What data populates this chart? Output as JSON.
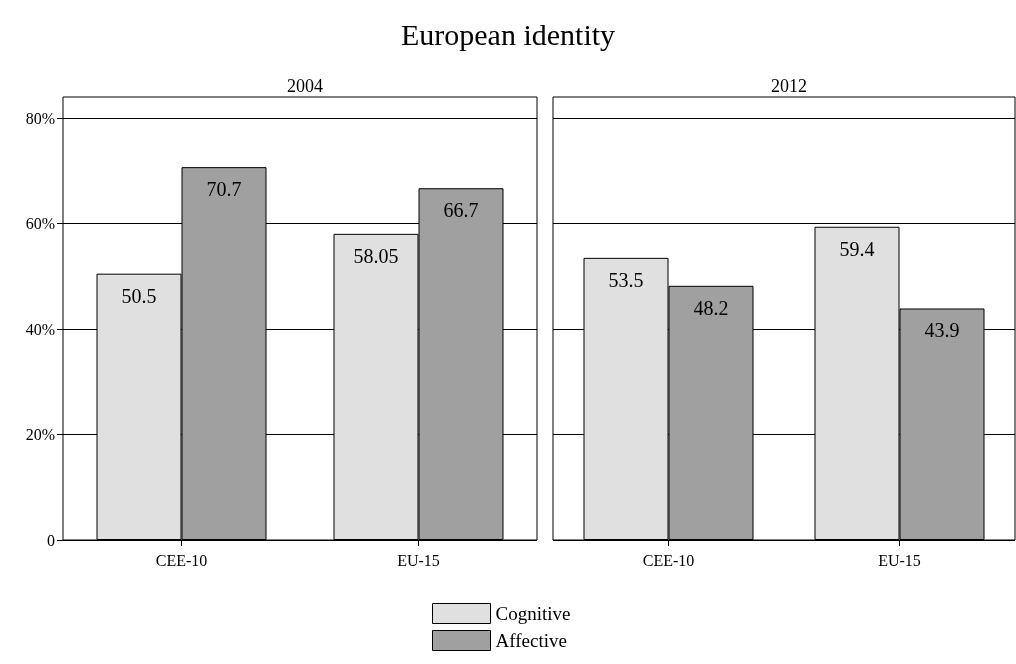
{
  "chart_data": [
    {
      "type": "bar",
      "title": "European identity",
      "subtitle": "2004",
      "categories": [
        "CEE-10",
        "EU-15"
      ],
      "series": [
        {
          "name": "Cognitive",
          "color": "#e0e0e0",
          "values": [
            50.5,
            58.05
          ]
        },
        {
          "name": "Affective",
          "color": "#a0a0a0",
          "values": [
            70.7,
            66.7
          ]
        }
      ],
      "ylim": [
        0,
        84
      ],
      "yticks": [
        {
          "value": 0,
          "label": "0"
        },
        {
          "value": 20,
          "label": "20%"
        },
        {
          "value": 40,
          "label": "40%"
        },
        {
          "value": 60,
          "label": "60%"
        },
        {
          "value": 80,
          "label": "80%"
        }
      ],
      "grid": "y",
      "data_labels": true,
      "legend": "bottom"
    },
    {
      "type": "bar",
      "subtitle": "2012",
      "categories": [
        "CEE-10",
        "EU-15"
      ],
      "series": [
        {
          "color": "#e0e0e0",
          "values": [
            53.5,
            59.4
          ]
        },
        {
          "color": "#a0a0a0",
          "values": [
            48.2,
            43.9
          ]
        }
      ],
      "ylim": [
        0,
        84
      ],
      "yticks": [
        0,
        20,
        40,
        60,
        80
      ],
      "grid": "y",
      "data_labels": true,
      "tick_labels": "x"
    }
  ]
}
